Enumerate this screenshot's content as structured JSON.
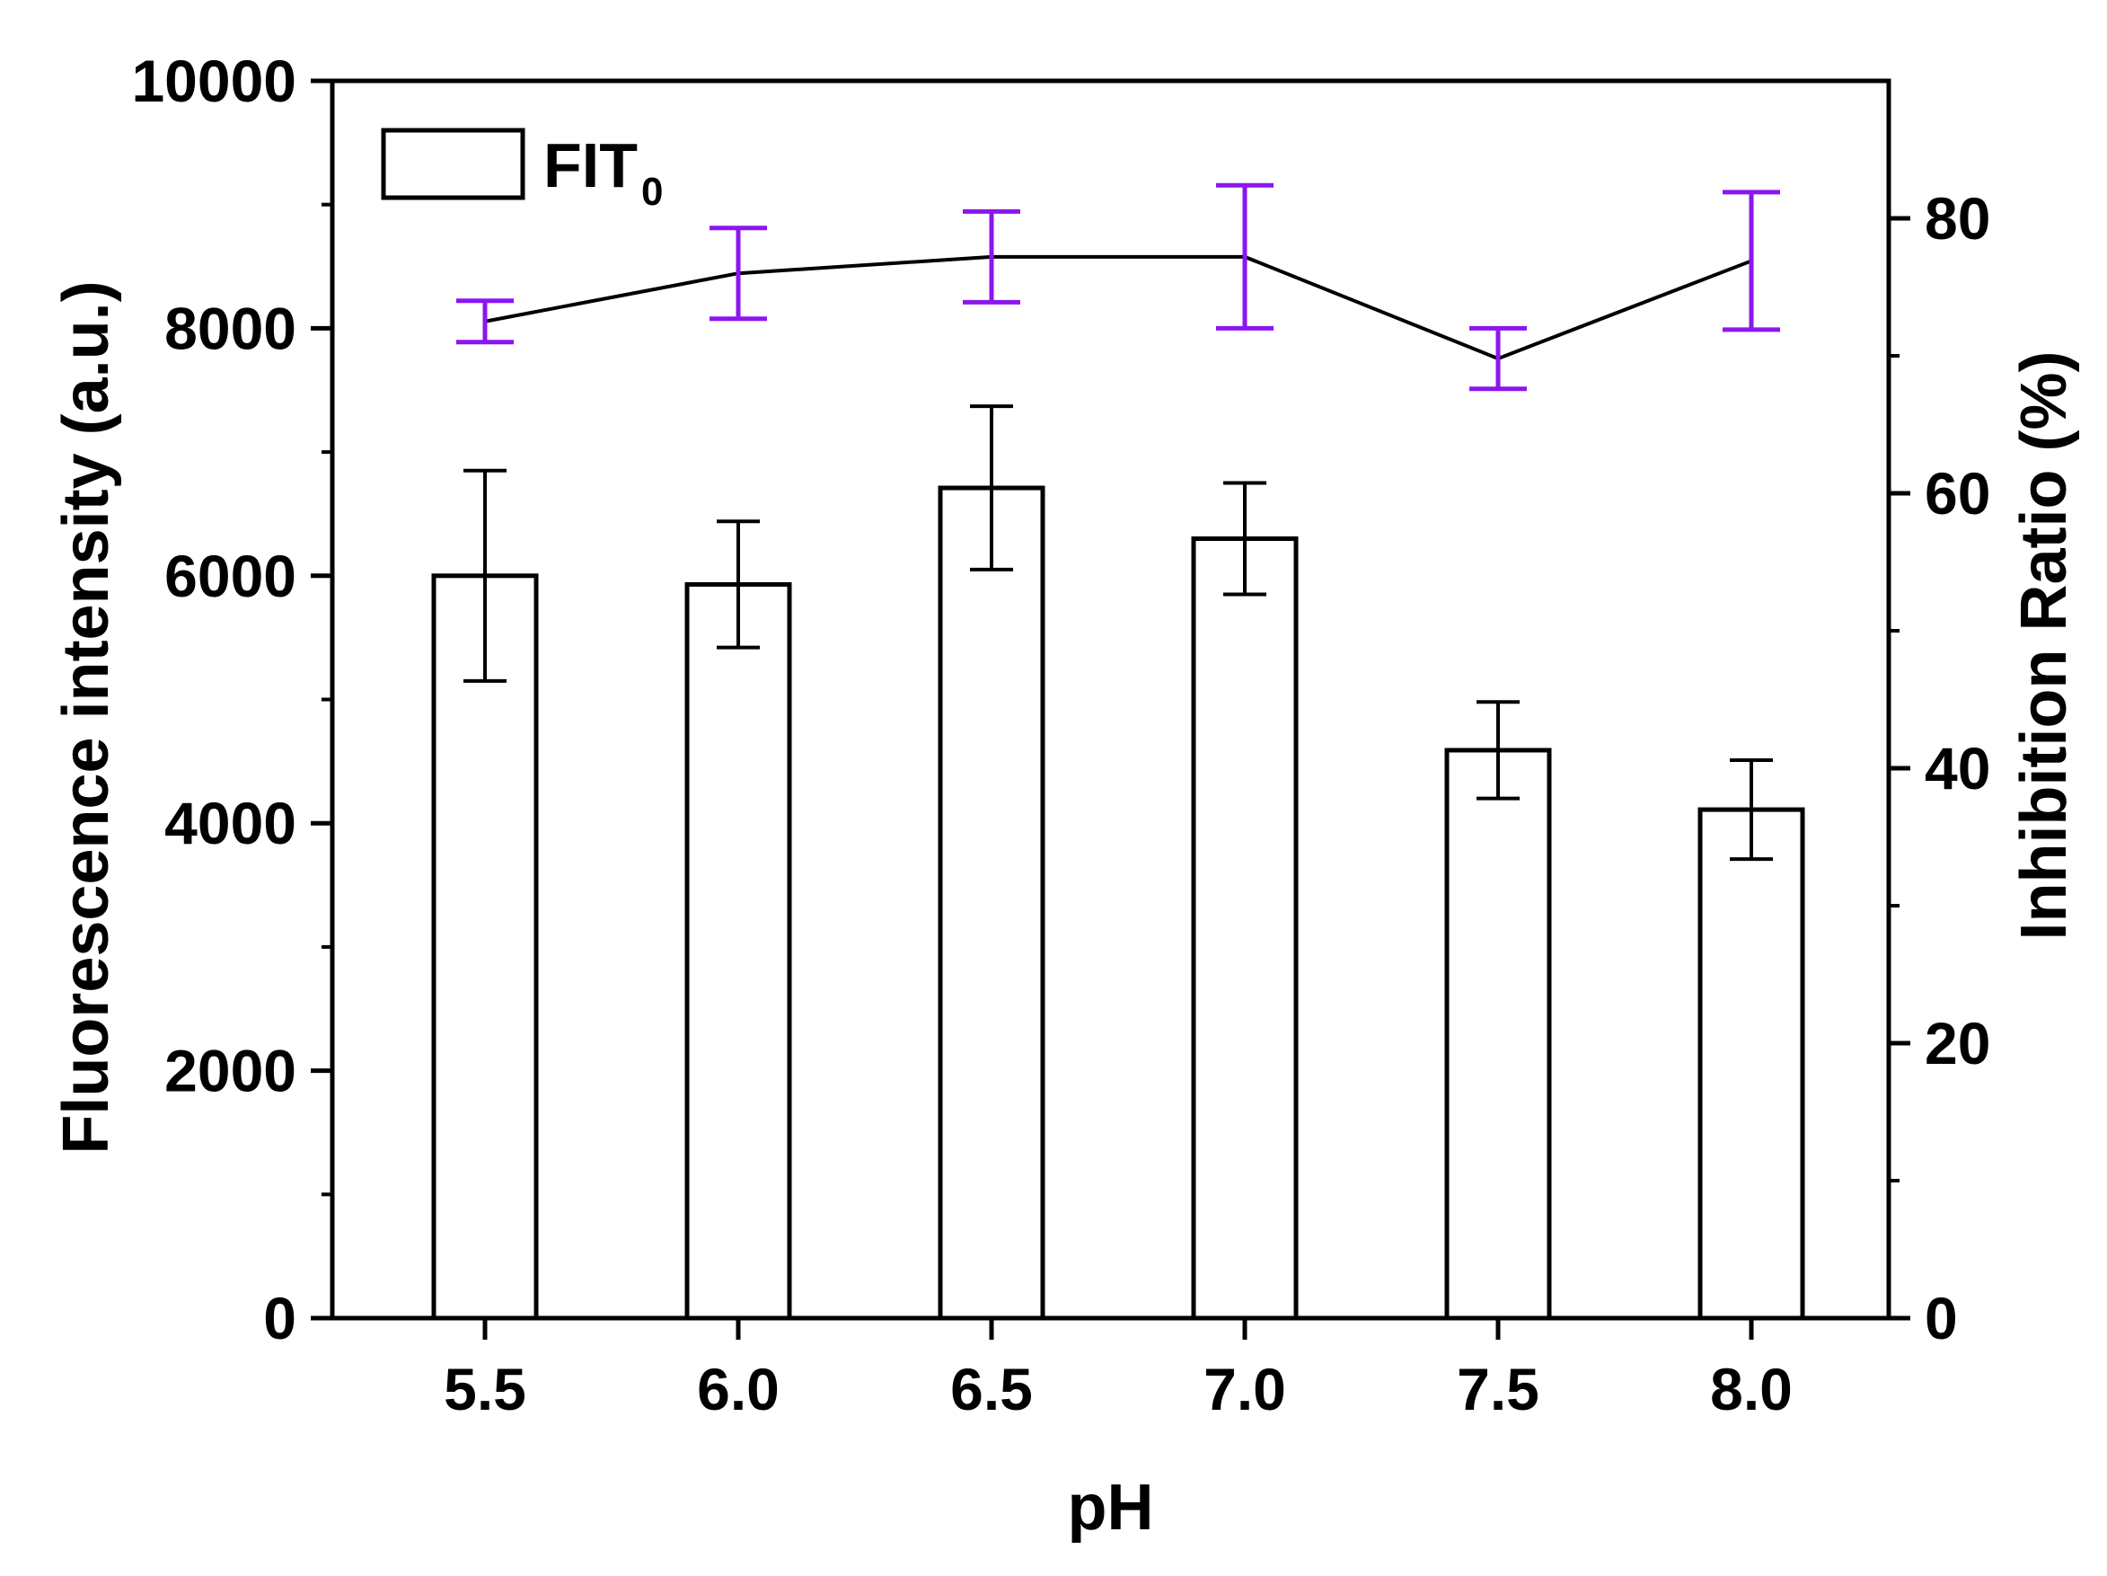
{
  "chart_data": {
    "type": "bar+line",
    "categories": [
      "5.5",
      "6.0",
      "6.5",
      "7.0",
      "7.5",
      "8.0"
    ],
    "bars": {
      "name": "FIT",
      "name_subscript": "0",
      "values": [
        6000,
        5930,
        6710,
        6300,
        4590,
        4110
      ],
      "errors": [
        850,
        510,
        660,
        450,
        390,
        400
      ],
      "fill": "#ffffff",
      "stroke": "#000000"
    },
    "line": {
      "values": [
        72.5,
        76.0,
        77.2,
        77.2,
        69.8,
        76.9
      ],
      "errors": [
        1.5,
        3.3,
        3.3,
        5.2,
        2.2,
        5.0
      ],
      "line_color": "#000000",
      "error_color": "#8b16f0"
    },
    "xlabel": "pH",
    "ylabel_left": "Fluorescence intensity (a.u.)",
    "ylabel_right": "Inhibition Ratio (%)",
    "ylim_left": [
      0,
      10000
    ],
    "yticks_left": [
      "0",
      "2000",
      "4000",
      "6000",
      "8000",
      "10000"
    ],
    "ylim_right": [
      0,
      90
    ],
    "yticks_right": [
      "0",
      "20",
      "40",
      "60",
      "80"
    ],
    "legend_position": "top-left",
    "grid": false
  }
}
